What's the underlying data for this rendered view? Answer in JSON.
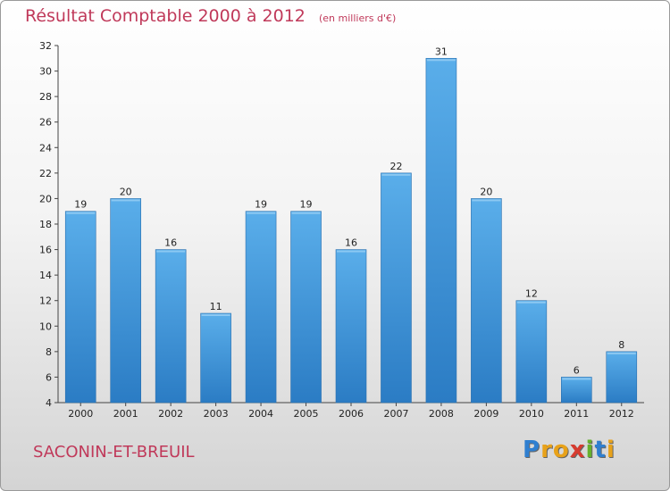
{
  "chart_data": {
    "type": "bar",
    "title": "Résultat Comptable 2000 à 2012",
    "subtitle": "(en milliers d'€)",
    "categories": [
      "2000",
      "2001",
      "2002",
      "2003",
      "2004",
      "2005",
      "2006",
      "2007",
      "2008",
      "2009",
      "2010",
      "2011",
      "2012"
    ],
    "values": [
      19,
      20,
      16,
      11,
      19,
      19,
      16,
      22,
      31,
      20,
      12,
      6,
      8
    ],
    "ylim": [
      4,
      32
    ],
    "yticks": [
      4,
      6,
      8,
      10,
      12,
      14,
      16,
      18,
      20,
      22,
      24,
      26,
      28,
      30,
      32
    ],
    "grid": false,
    "bar_color": "#3a8fd6",
    "bar_color_light": "#5aaeea"
  },
  "footer": {
    "place": "SACONIN-ET-BREUIL",
    "logo_letters": [
      "P",
      "r",
      "o",
      "x",
      "i",
      "t",
      "i"
    ],
    "logo_colors": [
      "#2f7fd0",
      "#e8a21a",
      "#e8a21a",
      "#d63b2f",
      "#66b02c",
      "#2f7fd0",
      "#e8a21a"
    ]
  }
}
